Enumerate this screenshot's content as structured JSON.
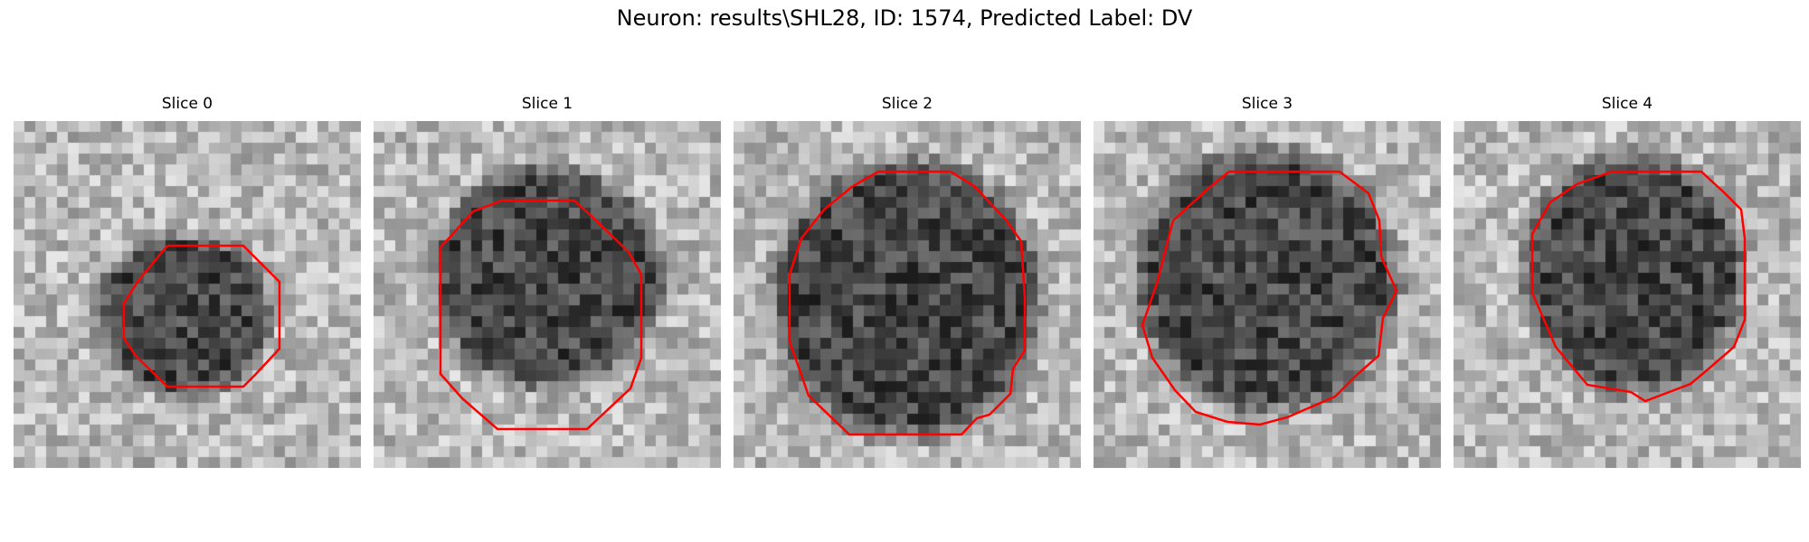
{
  "figure": {
    "title": "Neuron: results\\SHL28, ID: 1574, Predicted Label: DV",
    "contour_color": "#ff0000"
  },
  "slices": [
    {
      "title": "Slice 0"
    },
    {
      "title": "Slice 1"
    },
    {
      "title": "Slice 2"
    },
    {
      "title": "Slice 3"
    },
    {
      "title": "Slice 4"
    }
  ]
}
